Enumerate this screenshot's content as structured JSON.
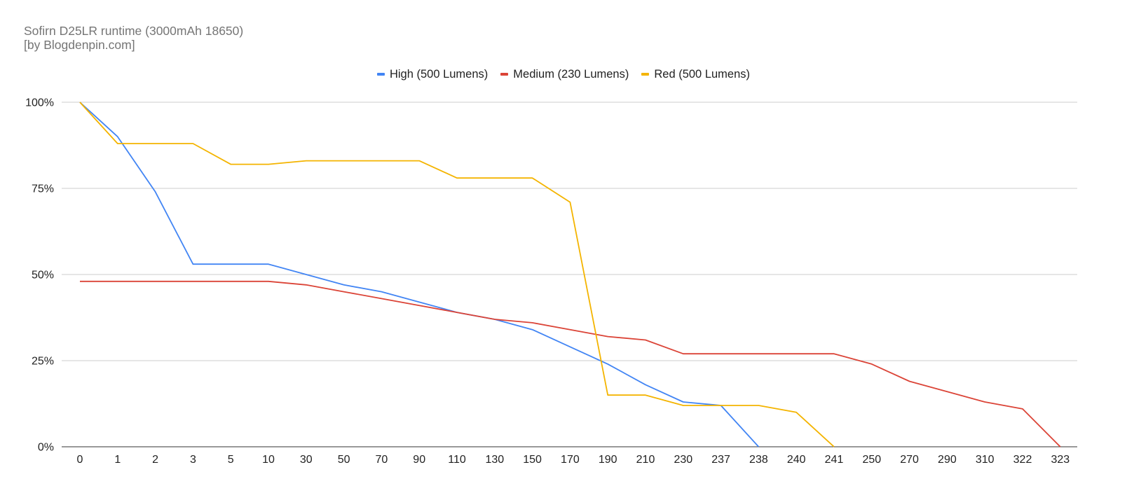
{
  "chart_data": {
    "type": "line",
    "title": "Sofirn D25LR runtime (3000mAh 18650)",
    "subtitle": "[by Blogdenpin.com]",
    "xlabel": "",
    "ylabel": "",
    "categories": [
      "0",
      "1",
      "2",
      "3",
      "5",
      "10",
      "30",
      "50",
      "70",
      "90",
      "110",
      "130",
      "150",
      "170",
      "190",
      "210",
      "230",
      "237",
      "238",
      "240",
      "241",
      "250",
      "270",
      "290",
      "310",
      "322",
      "323"
    ],
    "y_ticks": [
      "0%",
      "25%",
      "50%",
      "75%",
      "100%"
    ],
    "ylim": [
      0,
      100
    ],
    "grid": true,
    "legend_position": "top",
    "series": [
      {
        "name": "High (500 Lumens)",
        "color": "#4285f4",
        "values": [
          100,
          90,
          74,
          53,
          53,
          53,
          50,
          47,
          45,
          42,
          39,
          37,
          34,
          29,
          24,
          18,
          13,
          12,
          0,
          null,
          null,
          null,
          null,
          null,
          null,
          null,
          null
        ]
      },
      {
        "name": "Medium (230 Lumens)",
        "color": "#db4437",
        "values": [
          48,
          48,
          48,
          48,
          48,
          48,
          47,
          45,
          43,
          41,
          39,
          37,
          36,
          34,
          32,
          31,
          27,
          27,
          27,
          27,
          27,
          24,
          19,
          16,
          13,
          11,
          0
        ]
      },
      {
        "name": "Red (500 Lumens)",
        "color": "#f4b400",
        "values": [
          100,
          88,
          88,
          88,
          82,
          82,
          83,
          83,
          83,
          83,
          78,
          78,
          78,
          71,
          15,
          15,
          12,
          12,
          12,
          10,
          0,
          null,
          null,
          null,
          null,
          null,
          null
        ]
      }
    ]
  }
}
